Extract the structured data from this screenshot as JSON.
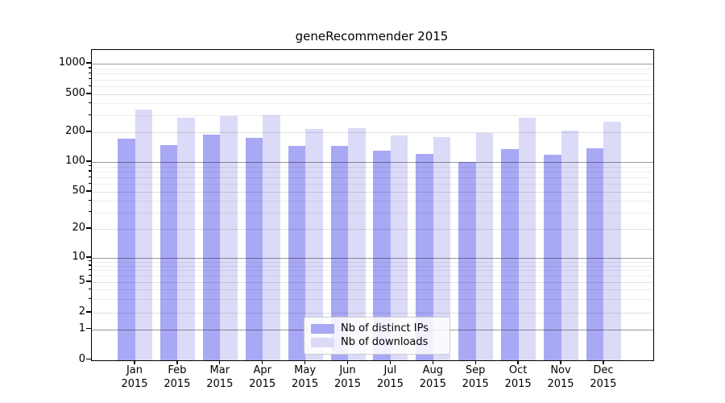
{
  "chart_data": {
    "type": "bar",
    "title": "geneRecommender 2015",
    "categories": [
      "Jan",
      "Feb",
      "Mar",
      "Apr",
      "May",
      "Jun",
      "Jul",
      "Aug",
      "Sep",
      "Oct",
      "Nov",
      "Dec"
    ],
    "category_year": "2015",
    "series": [
      {
        "name": "Nb of distinct IPs",
        "color": "#a8a8f5",
        "values": [
          173,
          149,
          189,
          176,
          146,
          145,
          130,
          121,
          101,
          134,
          119,
          137
        ]
      },
      {
        "name": "Nb of downloads",
        "color": "#dbdbf8",
        "values": [
          343,
          286,
          297,
          303,
          217,
          220,
          187,
          178,
          198,
          283,
          207,
          258
        ]
      }
    ],
    "yscale": "symlog",
    "yticks": [
      0,
      1,
      2,
      5,
      10,
      20,
      50,
      100,
      200,
      500,
      1000
    ],
    "ylim": [
      0,
      1400
    ],
    "xlabel": "",
    "ylabel": "",
    "grid": "on",
    "legend_position": "lower center"
  }
}
